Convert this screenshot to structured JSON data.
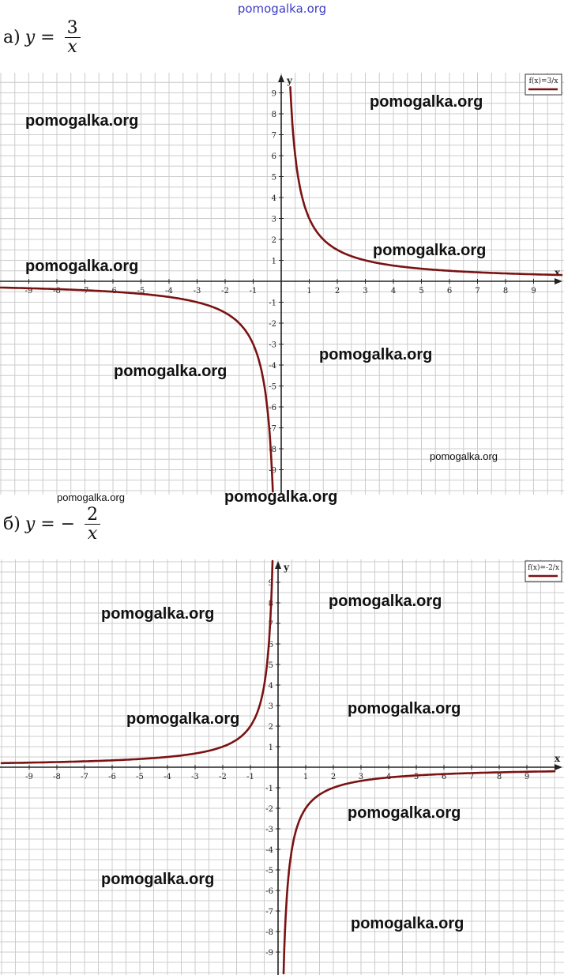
{
  "header_watermark": "pomogalka.org",
  "problems": {
    "a": {
      "label": "а)",
      "lhs": "y =",
      "numerator": "3",
      "denominator": "x"
    },
    "b": {
      "label": "б)",
      "lhs": "y = −",
      "numerator": "2",
      "denominator": "x"
    }
  },
  "watermarks": {
    "a": [
      "pomogalka.org",
      "pomogalka.org",
      "pomogalka.org",
      "pomogalka.org",
      "pomogalka.org",
      "pomogalka.org",
      "pomogalka.org"
    ],
    "small_a": "pomogalka.org",
    "small_a2": "pomogalka.org",
    "b": [
      "pomogalka.org",
      "pomogalka.org",
      "pomogalka.org",
      "pomogalka.org",
      "pomogalka.org",
      "pomogalka.org",
      "pomogalka.org"
    ]
  },
  "chart_data": [
    {
      "type": "line",
      "function": "3/x",
      "legend": "f(x)=3/x",
      "legend_position": "top-right",
      "xlabel": "x",
      "ylabel": "y",
      "xlim": [
        -10,
        10
      ],
      "ylim": [
        -10,
        10
      ],
      "grid": true,
      "x_ticks": [
        -9,
        -8,
        -7,
        -6,
        -5,
        -4,
        -3,
        -2,
        -1,
        1,
        2,
        3,
        4,
        5,
        6,
        7,
        8,
        9
      ],
      "y_ticks": [
        -9,
        -8,
        -7,
        -6,
        -5,
        -4,
        -3,
        -2,
        -1,
        1,
        2,
        3,
        4,
        5,
        6,
        7,
        8,
        9
      ],
      "color": "#7a1212"
    },
    {
      "type": "line",
      "function": "-2/x",
      "legend": "f(x)=-2/x",
      "legend_position": "top-right",
      "xlabel": "x",
      "ylabel": "y",
      "xlim": [
        -10,
        10
      ],
      "ylim": [
        -10,
        10
      ],
      "grid": true,
      "x_ticks": [
        -9,
        -8,
        -7,
        -6,
        -5,
        -4,
        -3,
        -2,
        -1,
        1,
        2,
        3,
        4,
        5,
        6,
        7,
        8,
        9
      ],
      "y_ticks": [
        -9,
        -8,
        -7,
        -6,
        -5,
        -4,
        -3,
        -2,
        -1,
        1,
        2,
        3,
        4,
        5,
        6,
        7,
        8,
        9
      ],
      "color": "#7a1212"
    }
  ]
}
